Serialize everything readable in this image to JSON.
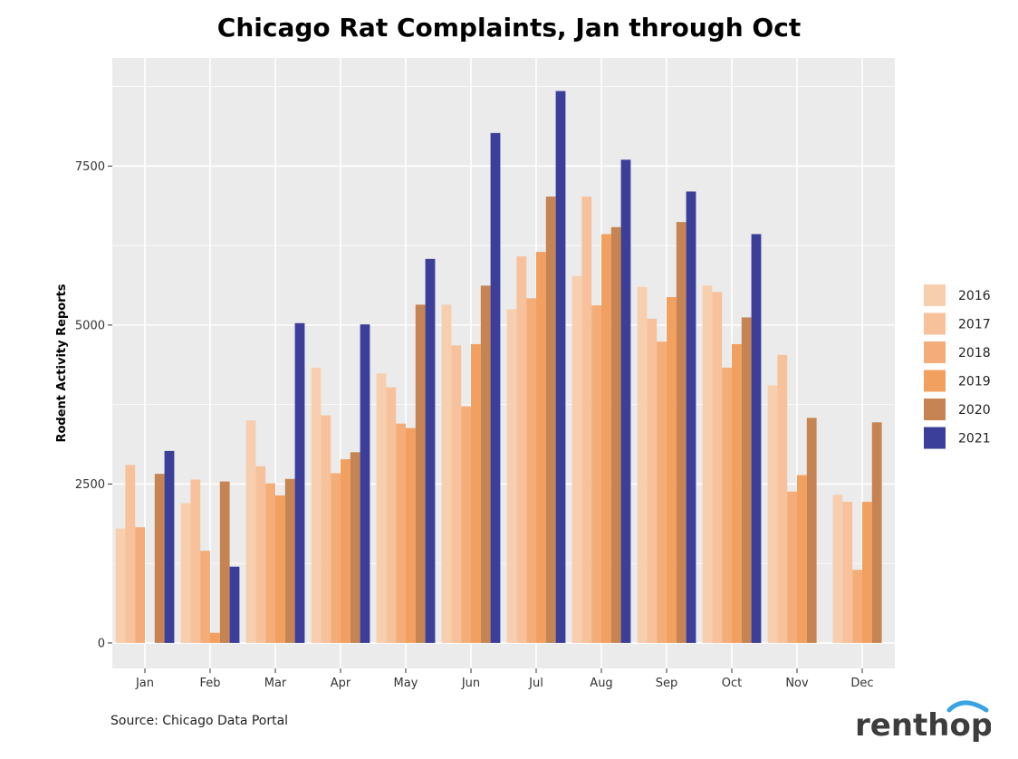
{
  "chart_data": {
    "type": "bar",
    "title": "Chicago Rat Complaints, Jan through Oct",
    "xlabel": "",
    "ylabel": "Rodent Activity Reports",
    "categories": [
      "Jan",
      "Feb",
      "Mar",
      "Apr",
      "May",
      "Jun",
      "Jul",
      "Aug",
      "Sep",
      "Oct",
      "Nov",
      "Dec"
    ],
    "ylim": [
      -400,
      9200
    ],
    "yticks": [
      0,
      2500,
      5000,
      7500
    ],
    "ytick_labels": [
      "0",
      "2500",
      "5000",
      "7500"
    ],
    "grid": true,
    "legend_position": "right",
    "series": [
      {
        "name": "2016",
        "color": "#f8cfae",
        "values": [
          1800,
          2200,
          3500,
          4330,
          4240,
          5320,
          5250,
          5770,
          5600,
          5620,
          4050,
          2330
        ]
      },
      {
        "name": "2017",
        "color": "#f7c29b",
        "values": [
          2800,
          2570,
          2780,
          3580,
          4020,
          4680,
          6080,
          7020,
          5100,
          5520,
          4530,
          2220
        ]
      },
      {
        "name": "2018",
        "color": "#f4ad78",
        "values": [
          1820,
          1450,
          2510,
          2670,
          3450,
          3720,
          5420,
          5310,
          4740,
          4330,
          2380,
          1150
        ]
      },
      {
        "name": "2019",
        "color": "#f2a060",
        "values": [
          null,
          160,
          2320,
          2890,
          3380,
          4700,
          6150,
          6430,
          5440,
          4700,
          2640,
          2220
        ]
      },
      {
        "name": "2020",
        "color": "#c58452",
        "values": [
          2660,
          2540,
          2580,
          3000,
          5320,
          5620,
          7020,
          6540,
          6620,
          5120,
          3540,
          3470
        ]
      },
      {
        "name": "2021",
        "color": "#3b3f99",
        "values": [
          3020,
          1200,
          5030,
          5010,
          6040,
          8020,
          8680,
          7600,
          7100,
          6430,
          null,
          null
        ]
      }
    ]
  },
  "source": "Source: Chicago Data Portal",
  "logo_text": "renthop",
  "colors": {
    "panel": "#ebebeb",
    "grid": "#ffffff",
    "logo_text": "#3d3d3d",
    "logo_arc": "#3aa3e3"
  }
}
